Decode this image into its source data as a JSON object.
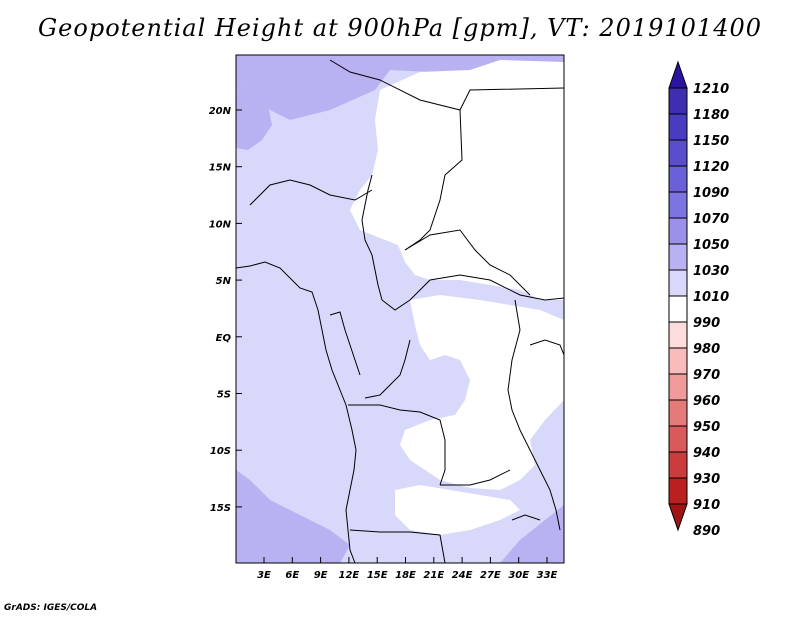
{
  "title": "Geopotential Height at 900hPa [gpm], VT: 2019101400",
  "credit": "GrADS: IGES/COLA",
  "lat_labels": [
    "20N",
    "15N",
    "10N",
    "5N",
    "EQ",
    "5S",
    "10S",
    "15S"
  ],
  "lon_labels": [
    "3E",
    "6E",
    "9E",
    "12E",
    "15E",
    "18E",
    "21E",
    "24E",
    "27E",
    "30E",
    "33E"
  ],
  "colorbar": {
    "levels": [
      1210,
      1180,
      1150,
      1120,
      1090,
      1070,
      1050,
      1030,
      1010,
      990,
      980,
      970,
      960,
      950,
      940,
      930,
      910,
      890
    ],
    "labels": [
      "1210",
      "1180",
      "1150",
      "1120",
      "1090",
      "1070",
      "1050",
      "1030",
      "1010",
      "990",
      "980",
      "970",
      "960",
      "950",
      "940",
      "930",
      "910",
      "890"
    ],
    "colors": [
      "#2a15a0",
      "#3d2fb0",
      "#4a3cbf",
      "#5a4ecc",
      "#6a60d8",
      "#7c74e0",
      "#9a92ea",
      "#b8b2f2",
      "#d8d8fa",
      "#ffffff",
      "#fcdcdc",
      "#f8bcbc",
      "#f09a9a",
      "#e47a7a",
      "#d85a5a",
      "#cc3c3c",
      "#bb2020",
      "#a01414"
    ]
  },
  "colors": {
    "fill_1010": "#d8d8fa",
    "fill_1030": "#b8b2f2",
    "fill_low": "#ffffff",
    "coast": "#000000"
  }
}
